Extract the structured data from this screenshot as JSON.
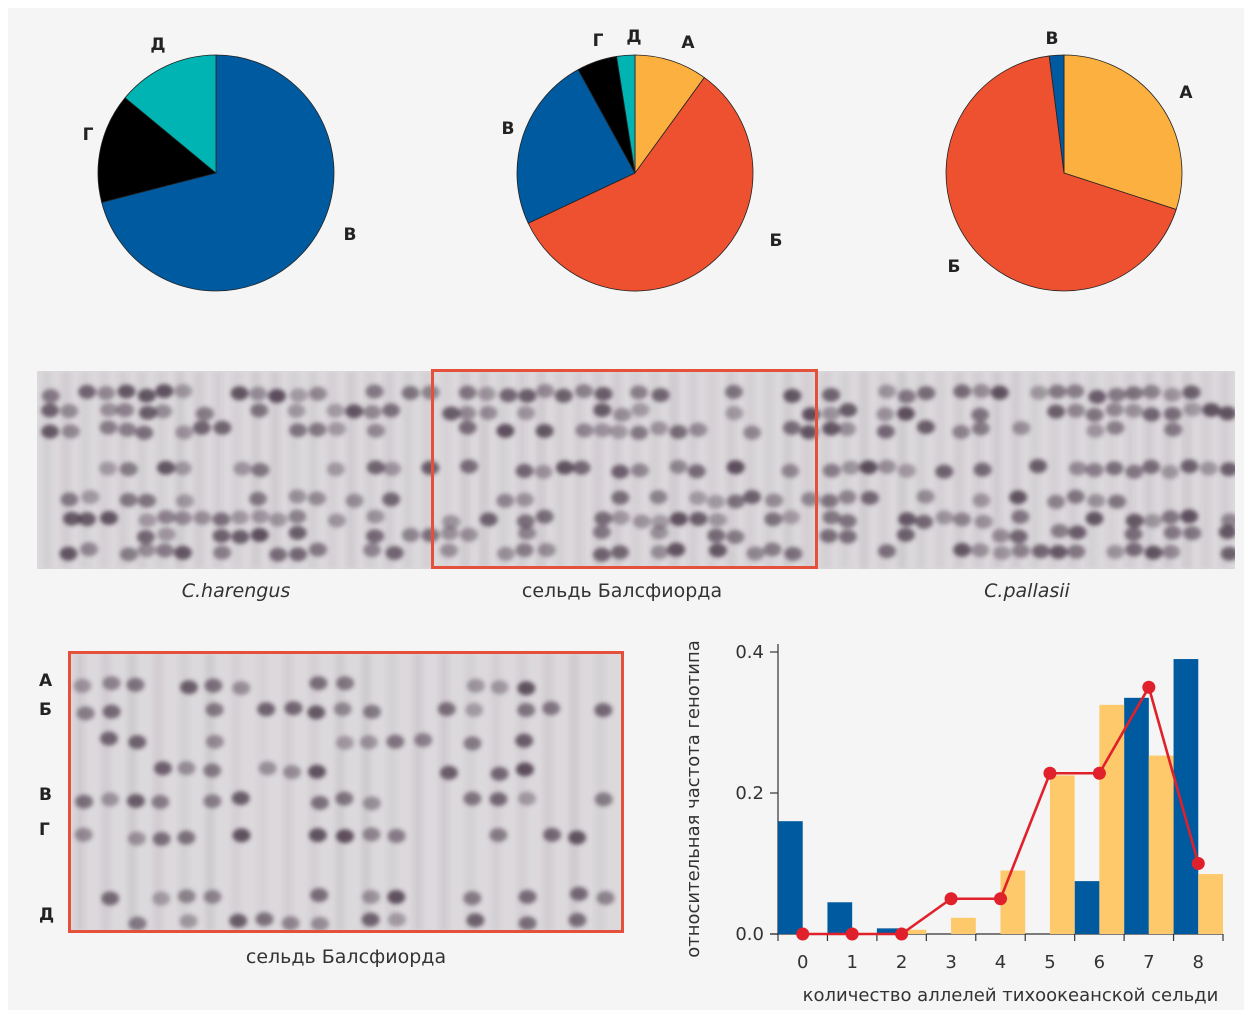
{
  "chart_data": [
    {
      "type": "pie",
      "slices": [
        {
          "label": "В",
          "value": 71,
          "color": "#005aa0"
        },
        {
          "label": "Г",
          "value": 15,
          "color": "#000000"
        },
        {
          "label": "Д",
          "value": 14,
          "color": "#00b4b4"
        }
      ]
    },
    {
      "type": "pie",
      "slices": [
        {
          "label": "А",
          "value": 10,
          "color": "#fbb040"
        },
        {
          "label": "Б",
          "value": 58,
          "color": "#ee5130"
        },
        {
          "label": "В",
          "value": 24,
          "color": "#005aa0"
        },
        {
          "label": "Г",
          "value": 5.5,
          "color": "#000000"
        },
        {
          "label": "Д",
          "value": 2.5,
          "color": "#00b4b4"
        }
      ]
    },
    {
      "type": "pie",
      "slices": [
        {
          "label": "А",
          "value": 30,
          "color": "#fbb040"
        },
        {
          "label": "Б",
          "value": 68,
          "color": "#ee5130"
        },
        {
          "label": "В",
          "value": 2,
          "color": "#005aa0"
        }
      ]
    },
    {
      "type": "bar",
      "categories": [
        "0",
        "1",
        "2",
        "3",
        "4",
        "5",
        "6",
        "7",
        "8"
      ],
      "series": [
        {
          "values": [
            0.16,
            0.045,
            0.008,
            0,
            0,
            0,
            0.075,
            0.335,
            0.39
          ],
          "color": "#005aa0"
        },
        {
          "values": [
            0,
            0,
            0.006,
            0.023,
            0.09,
            0.225,
            0.325,
            0.253,
            0.085
          ],
          "color": "#fdc96a"
        }
      ],
      "line": {
        "values": [
          0,
          0,
          0,
          0.05,
          0.05,
          0.228,
          0.228,
          0.35,
          0.1
        ],
        "color": "#e0202a"
      },
      "xlabel": "количество аллелей тихоокеанской сельди",
      "ylabel": "относительная частота генотипа",
      "ylim": [
        0,
        0.4
      ],
      "yticks": [
        "0.0",
        "0.2",
        "0.4"
      ]
    }
  ],
  "gels": {
    "top_captions": [
      "C.harengus",
      "сельдь Балсфиорда",
      "C.pallasii"
    ],
    "bottom_caption": "сельдь Балсфиорда",
    "band_labels": [
      "А",
      "Б",
      "В",
      "Г",
      "Д"
    ]
  }
}
